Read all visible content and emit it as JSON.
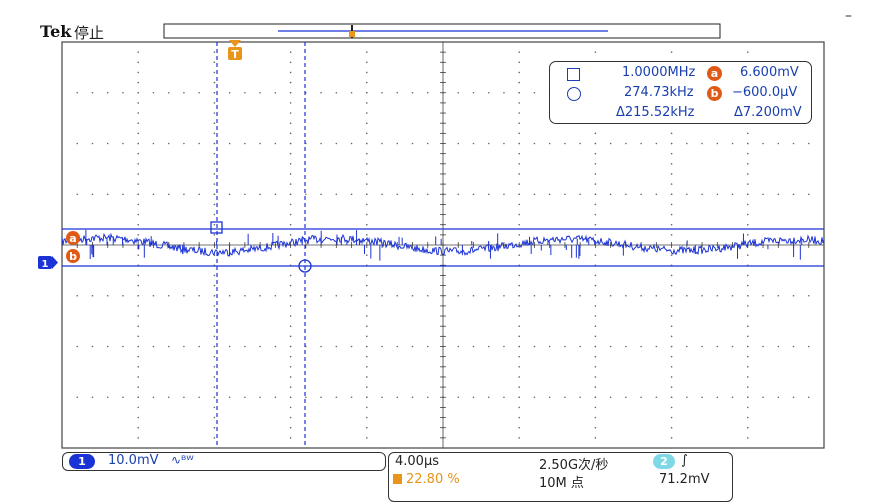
{
  "header": {
    "brand": "Tek",
    "status": "停止"
  },
  "markers": {
    "channel": "1",
    "ref_a": "a",
    "ref_b": "b",
    "trigger": "T"
  },
  "cursors": {
    "cursor1_freq": "1.0000MHz",
    "cursor1_badge": "a",
    "cursor1_volt": "6.600mV",
    "cursor2_freq": "274.73kHz",
    "cursor2_badge": "b",
    "cursor2_volt": "−600.0μV",
    "delta_freq": "Δ215.52kHz",
    "delta_volt": "Δ7.200mV"
  },
  "channel": {
    "number": "1",
    "scale": "10.0mV",
    "bw_icon": "∿ᴮᵂ"
  },
  "timebase": {
    "horizontal": "4.00μs",
    "sample_rate": "2.50G次/秒",
    "record_length": "10M 点",
    "trigger_channel": "2",
    "trigger_slope": "∫",
    "trigger_level": "71.2mV",
    "trigger_position": "22.80 %"
  },
  "colors": {
    "trace": "#1b33d6",
    "grid": "#555555",
    "cursor": "#1b33d6",
    "marker_orange": "#e8951a",
    "marker_red": "#e05a17"
  }
}
